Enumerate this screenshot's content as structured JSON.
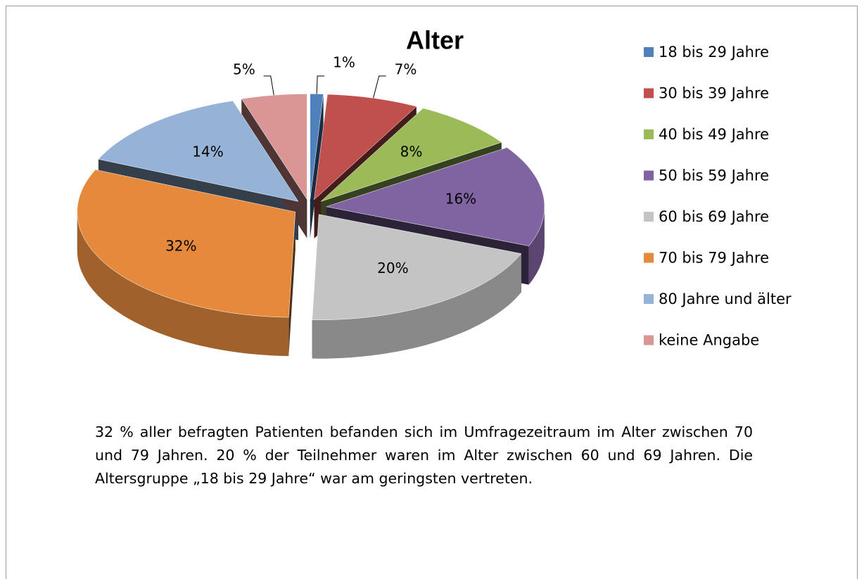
{
  "chart_data": {
    "type": "pie",
    "title": "Alter",
    "categories": [
      "18 bis 29 Jahre",
      "30 bis 39 Jahre",
      "40 bis 49 Jahre",
      "50 bis 59 Jahre",
      "60 bis 69 Jahre",
      "70 bis 79 Jahre",
      "80 Jahre und älter",
      "keine Angabe"
    ],
    "values": [
      1,
      7,
      8,
      16,
      20,
      32,
      14,
      5
    ],
    "value_labels": [
      "1%",
      "7%",
      "8%",
      "16%",
      "20%",
      "32%",
      "14%",
      "5%"
    ],
    "colors": [
      "#4f81bd",
      "#c0504d",
      "#9bbb59",
      "#8064a2",
      "#c4c4c4",
      "#e58a3c",
      "#95b3d7",
      "#d99694"
    ],
    "legend": "right"
  },
  "paragraph": "32 % aller befragten Patienten befanden sich im Umfragezeitraum im Alter zwischen 70 und  79 Jahren. 20 % der Teilnehmer waren im Alter zwischen 60 und 69 Jahren. Die Altersgruppe „18 bis 29 Jahre“ war am geringsten vertreten."
}
